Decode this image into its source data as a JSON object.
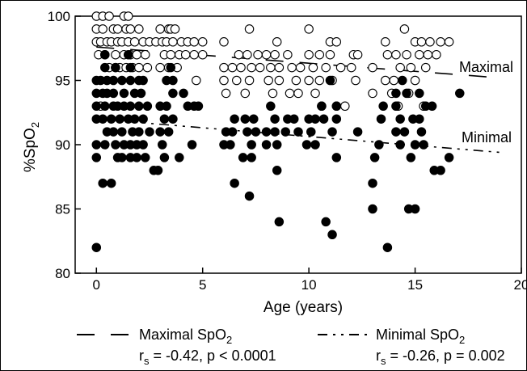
{
  "chart_data": {
    "type": "scatter",
    "xlabel": "Age (years)",
    "ylabel": "%SpO",
    "ylabel_sub": "2",
    "xlim": [
      -1,
      20
    ],
    "ylim": [
      80,
      100
    ],
    "xticks": [
      0,
      5,
      10,
      15,
      20
    ],
    "yticks": [
      80,
      85,
      90,
      95,
      100
    ],
    "grid": false,
    "legend_position": "bottom",
    "series": [
      {
        "name": "Maximal SpO",
        "name_sub": "2",
        "marker": "open-circle",
        "stat_label": "r",
        "stat_label_sub": "s",
        "stat": " = -0.42, p < 0.0001",
        "trend_line": {
          "style": "dashed",
          "from": [
            0,
            97.6
          ],
          "to": [
            19,
            95.2
          ]
        },
        "points": [
          [
            0.0,
            100
          ],
          [
            0.3,
            100
          ],
          [
            0.6,
            100
          ],
          [
            1.3,
            100
          ],
          [
            1.5,
            100
          ],
          [
            0.0,
            99
          ],
          [
            0.3,
            99
          ],
          [
            0.8,
            99
          ],
          [
            1.0,
            99
          ],
          [
            1.4,
            99
          ],
          [
            1.6,
            99
          ],
          [
            2.0,
            99
          ],
          [
            3.0,
            99
          ],
          [
            3.4,
            99
          ],
          [
            3.5,
            99
          ],
          [
            3.7,
            99
          ],
          [
            7.2,
            99
          ],
          [
            10.0,
            99
          ],
          [
            14.5,
            99
          ],
          [
            0.0,
            98
          ],
          [
            0.2,
            98
          ],
          [
            0.5,
            98
          ],
          [
            0.7,
            98
          ],
          [
            1.0,
            98
          ],
          [
            1.2,
            98
          ],
          [
            1.5,
            98
          ],
          [
            1.8,
            98
          ],
          [
            2.2,
            98
          ],
          [
            2.5,
            98
          ],
          [
            2.8,
            98
          ],
          [
            3.1,
            98
          ],
          [
            3.3,
            98
          ],
          [
            3.6,
            98
          ],
          [
            4.0,
            98
          ],
          [
            4.3,
            98
          ],
          [
            4.6,
            98
          ],
          [
            5.0,
            98
          ],
          [
            6.0,
            98
          ],
          [
            8.5,
            98
          ],
          [
            11.0,
            98
          ],
          [
            11.3,
            98
          ],
          [
            13.6,
            98
          ],
          [
            15.0,
            98
          ],
          [
            15.3,
            98
          ],
          [
            15.7,
            98
          ],
          [
            16.2,
            98
          ],
          [
            16.6,
            98
          ],
          [
            0.1,
            97
          ],
          [
            0.4,
            97
          ],
          [
            0.9,
            97
          ],
          [
            1.3,
            97
          ],
          [
            1.6,
            97
          ],
          [
            1.9,
            97
          ],
          [
            2.3,
            97
          ],
          [
            3.2,
            97
          ],
          [
            3.5,
            97
          ],
          [
            3.9,
            97
          ],
          [
            4.2,
            97
          ],
          [
            4.6,
            97
          ],
          [
            5.0,
            97
          ],
          [
            6.7,
            97
          ],
          [
            7.1,
            97
          ],
          [
            7.6,
            97
          ],
          [
            8.0,
            97
          ],
          [
            8.4,
            97
          ],
          [
            9.0,
            97
          ],
          [
            10.0,
            97
          ],
          [
            10.5,
            97
          ],
          [
            11.0,
            97
          ],
          [
            12.1,
            97
          ],
          [
            12.3,
            97
          ],
          [
            13.7,
            97
          ],
          [
            14.1,
            97
          ],
          [
            14.6,
            97
          ],
          [
            15.2,
            97
          ],
          [
            15.6,
            97
          ],
          [
            16.0,
            97
          ],
          [
            0.6,
            96
          ],
          [
            0.9,
            96
          ],
          [
            1.1,
            96
          ],
          [
            1.4,
            96
          ],
          [
            1.7,
            96
          ],
          [
            2.0,
            96
          ],
          [
            2.4,
            96
          ],
          [
            3.0,
            96
          ],
          [
            3.4,
            96
          ],
          [
            3.8,
            96
          ],
          [
            6.0,
            96
          ],
          [
            6.4,
            96
          ],
          [
            6.8,
            96
          ],
          [
            7.3,
            96
          ],
          [
            7.7,
            96
          ],
          [
            8.2,
            96
          ],
          [
            8.6,
            96
          ],
          [
            9.2,
            96
          ],
          [
            9.6,
            96
          ],
          [
            10.2,
            96
          ],
          [
            10.8,
            96
          ],
          [
            11.5,
            96
          ],
          [
            12.0,
            96
          ],
          [
            13.0,
            96
          ],
          [
            14.3,
            96
          ],
          [
            14.8,
            96
          ],
          [
            15.5,
            96
          ],
          [
            4.7,
            95
          ],
          [
            6.0,
            95
          ],
          [
            6.6,
            95
          ],
          [
            7.2,
            95
          ],
          [
            8.1,
            95
          ],
          [
            8.6,
            95
          ],
          [
            9.4,
            95
          ],
          [
            10.0,
            95
          ],
          [
            10.5,
            95
          ],
          [
            11.1,
            95
          ],
          [
            12.2,
            95
          ],
          [
            13.6,
            95
          ],
          [
            14.0,
            95
          ],
          [
            15.0,
            95
          ],
          [
            6.1,
            94
          ],
          [
            7.0,
            94
          ],
          [
            8.3,
            94
          ],
          [
            9.1,
            94
          ],
          [
            9.5,
            94
          ],
          [
            10.3,
            94
          ],
          [
            13.0,
            94
          ],
          [
            13.9,
            94
          ],
          [
            14.7,
            94
          ],
          [
            0.2,
            93
          ],
          [
            10.6,
            93
          ],
          [
            11.3,
            93
          ],
          [
            11.7,
            93
          ],
          [
            14.2,
            93
          ],
          [
            15.4,
            93
          ]
        ]
      },
      {
        "name": "Minimal SpO",
        "name_sub": "2",
        "marker": "filled-circle",
        "stat_label": "r",
        "stat_label_sub": "s",
        "stat": " = -0.26, p = 0.002",
        "trend_line": {
          "style": "dash-dot-dot",
          "from": [
            0,
            92.0
          ],
          "to": [
            19,
            89.4
          ]
        },
        "points": [
          [
            0.4,
            97
          ],
          [
            1.5,
            97
          ],
          [
            0.4,
            96
          ],
          [
            0.9,
            96
          ],
          [
            1.6,
            96
          ],
          [
            3.5,
            96
          ],
          [
            0.0,
            95
          ],
          [
            0.2,
            95
          ],
          [
            0.5,
            95
          ],
          [
            0.8,
            95
          ],
          [
            1.2,
            95
          ],
          [
            1.6,
            95
          ],
          [
            2.0,
            95
          ],
          [
            2.2,
            95
          ],
          [
            3.3,
            95
          ],
          [
            3.6,
            95
          ],
          [
            11.0,
            95
          ],
          [
            14.4,
            95
          ],
          [
            0.0,
            94
          ],
          [
            0.3,
            94
          ],
          [
            0.5,
            94
          ],
          [
            0.8,
            94
          ],
          [
            1.3,
            94
          ],
          [
            1.8,
            94
          ],
          [
            2.1,
            94
          ],
          [
            3.6,
            94
          ],
          [
            4.1,
            94
          ],
          [
            14.1,
            94
          ],
          [
            14.6,
            94
          ],
          [
            15.2,
            94
          ],
          [
            0.0,
            93
          ],
          [
            0.4,
            93
          ],
          [
            0.8,
            93
          ],
          [
            1.0,
            93
          ],
          [
            1.3,
            93
          ],
          [
            1.6,
            93
          ],
          [
            2.0,
            93
          ],
          [
            2.4,
            93
          ],
          [
            3.0,
            93
          ],
          [
            3.3,
            93
          ],
          [
            4.3,
            93
          ],
          [
            4.6,
            93
          ],
          [
            4.8,
            93
          ],
          [
            8.2,
            93
          ],
          [
            10.6,
            93
          ],
          [
            11.3,
            93
          ],
          [
            13.5,
            93
          ],
          [
            14.1,
            93
          ],
          [
            15.5,
            93
          ],
          [
            15.8,
            93
          ],
          [
            0.0,
            92
          ],
          [
            0.3,
            92
          ],
          [
            0.7,
            92
          ],
          [
            1.1,
            92
          ],
          [
            1.5,
            92
          ],
          [
            1.8,
            92
          ],
          [
            2.2,
            92
          ],
          [
            3.2,
            92
          ],
          [
            3.6,
            92
          ],
          [
            6.5,
            92
          ],
          [
            7.0,
            92
          ],
          [
            7.4,
            92
          ],
          [
            8.4,
            92
          ],
          [
            9.0,
            92
          ],
          [
            9.3,
            92
          ],
          [
            10.0,
            92
          ],
          [
            10.3,
            92
          ],
          [
            10.7,
            92
          ],
          [
            11.3,
            92
          ],
          [
            13.4,
            92
          ],
          [
            14.3,
            92
          ],
          [
            14.9,
            92
          ],
          [
            15.2,
            92
          ],
          [
            0.5,
            91
          ],
          [
            0.8,
            91
          ],
          [
            1.2,
            91
          ],
          [
            1.7,
            91
          ],
          [
            2.0,
            91
          ],
          [
            2.5,
            91
          ],
          [
            3.0,
            91
          ],
          [
            3.4,
            91
          ],
          [
            6.1,
            91
          ],
          [
            6.4,
            91
          ],
          [
            7.1,
            91
          ],
          [
            7.5,
            91
          ],
          [
            8.0,
            91
          ],
          [
            8.4,
            91
          ],
          [
            8.9,
            91
          ],
          [
            9.5,
            91
          ],
          [
            10.1,
            91
          ],
          [
            11.1,
            91
          ],
          [
            12.3,
            91
          ],
          [
            14.1,
            91
          ],
          [
            14.5,
            91
          ],
          [
            15.3,
            91
          ],
          [
            0.0,
            90
          ],
          [
            0.4,
            90
          ],
          [
            0.9,
            90
          ],
          [
            1.3,
            90
          ],
          [
            1.6,
            90
          ],
          [
            1.9,
            90
          ],
          [
            2.2,
            90
          ],
          [
            3.1,
            90
          ],
          [
            4.5,
            90
          ],
          [
            6.0,
            90
          ],
          [
            6.3,
            90
          ],
          [
            7.3,
            90
          ],
          [
            8.0,
            90
          ],
          [
            8.5,
            90
          ],
          [
            9.9,
            90
          ],
          [
            10.3,
            90
          ],
          [
            13.3,
            90
          ],
          [
            14.3,
            90
          ],
          [
            15.0,
            90
          ],
          [
            15.4,
            90
          ],
          [
            0.0,
            89
          ],
          [
            1.0,
            89
          ],
          [
            1.2,
            89
          ],
          [
            1.6,
            89
          ],
          [
            1.9,
            89
          ],
          [
            2.3,
            89
          ],
          [
            3.2,
            89
          ],
          [
            3.9,
            89
          ],
          [
            6.9,
            89
          ],
          [
            7.3,
            89
          ],
          [
            11.3,
            89
          ],
          [
            13.1,
            89
          ],
          [
            14.8,
            89
          ],
          [
            16.6,
            89
          ],
          [
            2.7,
            88
          ],
          [
            2.9,
            88
          ],
          [
            8.5,
            88
          ],
          [
            15.9,
            88
          ],
          [
            16.2,
            88
          ],
          [
            0.3,
            87
          ],
          [
            0.7,
            87
          ],
          [
            6.5,
            87
          ],
          [
            13.0,
            87
          ],
          [
            7.2,
            86
          ],
          [
            13.0,
            85
          ],
          [
            14.7,
            85
          ],
          [
            15.0,
            85
          ],
          [
            8.6,
            84
          ],
          [
            10.8,
            84
          ],
          [
            11.1,
            83
          ],
          [
            0.0,
            82
          ],
          [
            13.7,
            82
          ],
          [
            17.1,
            94
          ]
        ]
      }
    ],
    "annotations": [
      "Maximal",
      "Minimal"
    ]
  }
}
